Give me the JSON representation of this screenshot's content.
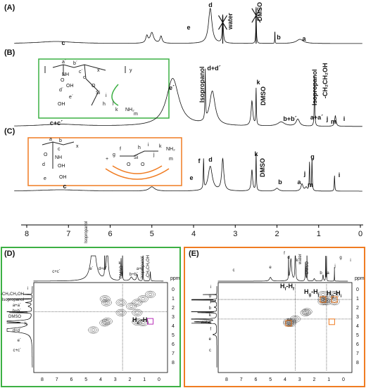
{
  "top": {
    "panels": [
      {
        "label": "(A)",
        "peaks": [
          "d",
          "water",
          "DMSO",
          "e",
          "b",
          "a",
          "c"
        ]
      },
      {
        "label": "(B)",
        "peaks": [
          "e´",
          "Isopropanol",
          "d+d´",
          "k",
          "DMSO",
          "b+b´",
          "a+a´",
          "j",
          "m",
          "Isopropanol",
          "-CH₂CH₂OH",
          "i",
          "c+c´"
        ],
        "structure": [
          "a´",
          "b´",
          "c´",
          "x",
          "y",
          "O",
          "NH",
          "OH",
          "d´",
          "e´",
          "OH",
          "Si",
          "O",
          "h",
          "i",
          "j",
          "k",
          "NH₂",
          "m",
          "c"
        ]
      },
      {
        "label": "(C)",
        "peaks": [
          "f",
          "d",
          "k",
          "DMSO",
          "g",
          "b",
          "a",
          "j",
          "m",
          "i",
          "e",
          "c"
        ],
        "structure": [
          "a",
          "b",
          "x",
          "c",
          "O",
          "NH",
          "d",
          "OH",
          "e",
          "OH",
          "+",
          "g",
          "f",
          "O",
          "Si",
          "O",
          "h",
          "i",
          "j",
          "k",
          "NH₂",
          "m"
        ]
      }
    ],
    "ticks": [
      8,
      7,
      6,
      5,
      4,
      3,
      2,
      1,
      0
    ]
  },
  "panel_d": {
    "label": "(D)",
    "top_peaks": [
      "e´",
      "Isopropanol",
      "d+d´",
      "k",
      "DMSO",
      "b+b´",
      "a+a´",
      "Isopropanol",
      "-CH₂CH₂OH",
      "c+c´"
    ],
    "left_peaks": [
      "i",
      "-CH₂CH₂OH",
      "Isopropanol",
      "a+a´",
      "b+b´",
      "DMSO",
      "k",
      "d+d´",
      "e´",
      "c+c´"
    ],
    "cross": [
      [
        "H",
        "c´",
        "-H",
        "i"
      ]
    ],
    "ticks": [
      8,
      7,
      6,
      5,
      4,
      3,
      2,
      1,
      0
    ],
    "yticks": [
      0,
      1,
      2,
      3,
      4,
      5,
      6,
      7,
      8
    ],
    "unit": "ppm"
  },
  "panel_e": {
    "label": "(E)",
    "top_peaks": [
      "c",
      "e",
      "f",
      "d",
      "k",
      "water",
      "DMSO",
      "b",
      "a",
      "j",
      "g",
      "i"
    ],
    "left_peaks": [
      "i",
      "g",
      "j",
      "b",
      "k",
      "water",
      "f",
      "e",
      "c"
    ],
    "cross": [
      [
        "H",
        "f",
        "-H",
        "f"
      ],
      [
        "H",
        "g",
        "-H",
        "j"
      ],
      [
        "H",
        "g",
        "-H",
        "i"
      ]
    ],
    "ticks": [
      8,
      7,
      6,
      5,
      4,
      3,
      2,
      1,
      0
    ],
    "yticks": [
      0,
      1,
      2,
      3,
      4,
      5,
      6,
      7,
      8
    ],
    "unit": "ppm"
  }
}
